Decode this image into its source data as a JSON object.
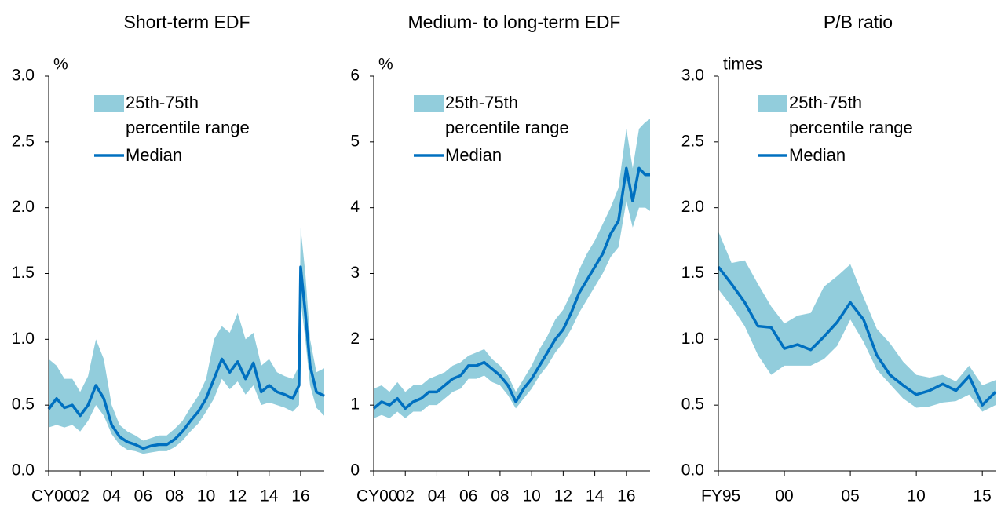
{
  "chart_data": [
    {
      "type": "band-line",
      "title": "Short-term EDF",
      "unit_label": "%",
      "xlim": [
        2000,
        2017.5
      ],
      "xticks": [
        {
          "value": 2000,
          "label": "CY00"
        },
        {
          "value": 2002,
          "label": "02"
        },
        {
          "value": 2004,
          "label": "04"
        },
        {
          "value": 2006,
          "label": "06"
        },
        {
          "value": 2008,
          "label": "08"
        },
        {
          "value": 2010,
          "label": "10"
        },
        {
          "value": 2012,
          "label": "12"
        },
        {
          "value": 2014,
          "label": "14"
        },
        {
          "value": 2016,
          "label": "16"
        }
      ],
      "ylim": [
        0,
        3
      ],
      "yticks": [
        {
          "value": 0,
          "label": "0.0"
        },
        0.5,
        {
          "value": 1,
          "label": "1.0"
        },
        1.5,
        {
          "value": 2,
          "label": "2.0"
        },
        2.5,
        {
          "value": 3,
          "label": "3.0"
        }
      ],
      "x": [
        2000,
        2000.5,
        2001,
        2001.5,
        2002,
        2002.5,
        2003,
        2003.5,
        2004,
        2004.5,
        2005,
        2005.5,
        2006,
        2006.5,
        2007,
        2007.5,
        2008,
        2008.5,
        2009,
        2009.5,
        2010,
        2010.5,
        2011,
        2011.5,
        2012,
        2012.5,
        2013,
        2013.5,
        2014,
        2014.5,
        2015,
        2015.5,
        2015.9,
        2016.0,
        2016.3,
        2016.6,
        2017,
        2017.5
      ],
      "series": [
        {
          "name": "25th-75th percentile range",
          "color": "#92cddc",
          "low": [
            0.33,
            0.35,
            0.33,
            0.35,
            0.3,
            0.38,
            0.5,
            0.42,
            0.28,
            0.2,
            0.16,
            0.15,
            0.13,
            0.14,
            0.15,
            0.15,
            0.18,
            0.23,
            0.3,
            0.36,
            0.45,
            0.55,
            0.7,
            0.62,
            0.68,
            0.58,
            0.65,
            0.5,
            0.52,
            0.5,
            0.48,
            0.45,
            0.5,
            1.3,
            1.0,
            0.65,
            0.48,
            0.42
          ],
          "high": [
            0.85,
            0.8,
            0.7,
            0.7,
            0.6,
            0.72,
            1.0,
            0.85,
            0.5,
            0.35,
            0.3,
            0.27,
            0.23,
            0.25,
            0.27,
            0.27,
            0.32,
            0.38,
            0.48,
            0.57,
            0.7,
            1.0,
            1.1,
            1.05,
            1.2,
            1.0,
            1.05,
            0.8,
            0.85,
            0.75,
            0.72,
            0.7,
            0.8,
            1.85,
            1.5,
            1.0,
            0.75,
            0.78
          ]
        },
        {
          "name": "Median",
          "color": "#0070c0",
          "values": [
            0.47,
            0.55,
            0.48,
            0.5,
            0.42,
            0.5,
            0.65,
            0.55,
            0.35,
            0.26,
            0.22,
            0.2,
            0.17,
            0.19,
            0.2,
            0.2,
            0.24,
            0.3,
            0.38,
            0.45,
            0.55,
            0.7,
            0.85,
            0.75,
            0.83,
            0.7,
            0.82,
            0.6,
            0.65,
            0.6,
            0.58,
            0.55,
            0.65,
            1.55,
            1.2,
            0.8,
            0.6,
            0.57
          ]
        }
      ]
    },
    {
      "type": "band-line",
      "title": "Medium- to long-term EDF",
      "unit_label": "%",
      "xlim": [
        2000,
        2017.5
      ],
      "xticks": [
        {
          "value": 2000,
          "label": "CY00"
        },
        {
          "value": 2002,
          "label": "02"
        },
        {
          "value": 2004,
          "label": "04"
        },
        {
          "value": 2006,
          "label": "06"
        },
        {
          "value": 2008,
          "label": "08"
        },
        {
          "value": 2010,
          "label": "10"
        },
        {
          "value": 2012,
          "label": "12"
        },
        {
          "value": 2014,
          "label": "14"
        },
        {
          "value": 2016,
          "label": "16"
        }
      ],
      "ylim": [
        0,
        6
      ],
      "yticks": [
        0,
        1,
        2,
        3,
        4,
        5,
        6
      ],
      "x": [
        2000,
        2000.5,
        2001,
        2001.5,
        2002,
        2002.5,
        2003,
        2003.5,
        2004,
        2004.5,
        2005,
        2005.5,
        2006,
        2006.5,
        2007,
        2007.5,
        2008,
        2008.5,
        2009,
        2009.5,
        2010,
        2010.5,
        2011,
        2011.5,
        2012,
        2012.5,
        2013,
        2013.5,
        2014,
        2014.5,
        2015,
        2015.5,
        2016,
        2016.4,
        2016.8,
        2017.2,
        2017.5
      ],
      "series": [
        {
          "name": "25th-75th percentile range",
          "color": "#92cddc",
          "low": [
            0.8,
            0.85,
            0.8,
            0.9,
            0.8,
            0.9,
            0.9,
            1.0,
            1.0,
            1.1,
            1.2,
            1.25,
            1.4,
            1.4,
            1.45,
            1.35,
            1.3,
            1.15,
            0.95,
            1.1,
            1.25,
            1.45,
            1.6,
            1.8,
            1.95,
            2.15,
            2.4,
            2.6,
            2.8,
            3.0,
            3.25,
            3.4,
            4.1,
            3.7,
            4.0,
            4.0,
            3.95
          ],
          "high": [
            1.25,
            1.3,
            1.2,
            1.35,
            1.2,
            1.3,
            1.3,
            1.4,
            1.45,
            1.5,
            1.6,
            1.65,
            1.75,
            1.8,
            1.85,
            1.7,
            1.6,
            1.45,
            1.2,
            1.4,
            1.6,
            1.85,
            2.05,
            2.3,
            2.45,
            2.7,
            3.05,
            3.3,
            3.5,
            3.75,
            4.0,
            4.3,
            5.2,
            4.6,
            5.2,
            5.3,
            5.35
          ]
        },
        {
          "name": "Median",
          "color": "#0070c0",
          "values": [
            0.95,
            1.05,
            1.0,
            1.1,
            0.95,
            1.05,
            1.1,
            1.2,
            1.2,
            1.3,
            1.4,
            1.45,
            1.6,
            1.6,
            1.65,
            1.55,
            1.45,
            1.3,
            1.05,
            1.25,
            1.4,
            1.6,
            1.8,
            2.0,
            2.15,
            2.4,
            2.7,
            2.9,
            3.1,
            3.3,
            3.6,
            3.8,
            4.6,
            4.1,
            4.6,
            4.5,
            4.5
          ]
        }
      ]
    },
    {
      "type": "band-line",
      "title": "P/B ratio",
      "unit_label": "times",
      "xlim": [
        1995,
        2016
      ],
      "xticks": [
        {
          "value": 1995,
          "label": "FY95"
        },
        {
          "value": 2000,
          "label": "00"
        },
        {
          "value": 2005,
          "label": "05"
        },
        {
          "value": 2010,
          "label": "10"
        },
        {
          "value": 2015,
          "label": "15"
        }
      ],
      "ylim": [
        0,
        3
      ],
      "yticks": [
        {
          "value": 0,
          "label": "0.0"
        },
        0.5,
        {
          "value": 1,
          "label": "1.0"
        },
        1.5,
        {
          "value": 2,
          "label": "2.0"
        },
        2.5,
        {
          "value": 3,
          "label": "3.0"
        }
      ],
      "x": [
        1995,
        1996,
        1997,
        1998,
        1999,
        2000,
        2001,
        2002,
        2003,
        2004,
        2005,
        2006,
        2007,
        2008,
        2009,
        2010,
        2011,
        2012,
        2013,
        2014,
        2015,
        2016
      ],
      "series": [
        {
          "name": "25th-75th percentile range",
          "color": "#92cddc",
          "low": [
            1.38,
            1.25,
            1.1,
            0.88,
            0.73,
            0.8,
            0.8,
            0.8,
            0.85,
            0.95,
            1.15,
            0.98,
            0.77,
            0.66,
            0.55,
            0.48,
            0.49,
            0.52,
            0.53,
            0.58,
            0.45,
            0.5
          ],
          "high": [
            1.82,
            1.58,
            1.6,
            1.42,
            1.25,
            1.12,
            1.18,
            1.2,
            1.4,
            1.48,
            1.57,
            1.32,
            1.08,
            0.97,
            0.83,
            0.73,
            0.71,
            0.73,
            0.68,
            0.8,
            0.65,
            0.69
          ]
        },
        {
          "name": "Median",
          "color": "#0070c0",
          "values": [
            1.55,
            1.42,
            1.28,
            1.1,
            1.09,
            0.93,
            0.96,
            0.92,
            1.02,
            1.13,
            1.28,
            1.15,
            0.88,
            0.73,
            0.65,
            0.58,
            0.61,
            0.66,
            0.61,
            0.72,
            0.5,
            0.6
          ]
        }
      ]
    }
  ]
}
